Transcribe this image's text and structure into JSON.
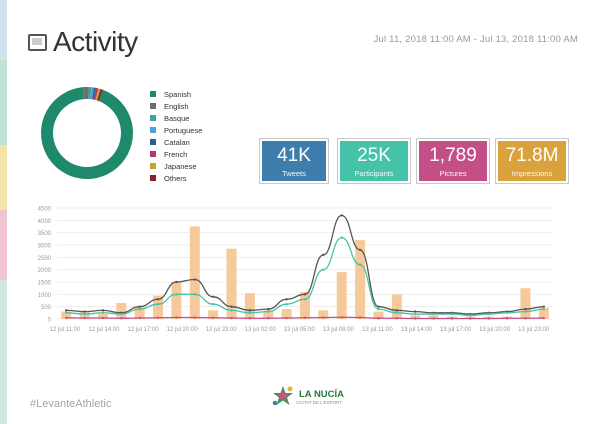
{
  "header": {
    "title": "Activity",
    "date_range": "Jul 11, 2018 11:00 AM - Jul 13, 2018 11:00 AM"
  },
  "languages": {
    "items": [
      {
        "label": "Spanish",
        "color": "#1f8a6b",
        "share": 0.93
      },
      {
        "label": "English",
        "color": "#6e6e6e",
        "share": 0.02
      },
      {
        "label": "Basque",
        "color": "#3aa1a8",
        "share": 0.01
      },
      {
        "label": "Portuguese",
        "color": "#4fa3d8",
        "share": 0.008
      },
      {
        "label": "Catalan",
        "color": "#2f5f8a",
        "share": 0.008
      },
      {
        "label": "French",
        "color": "#b5376d",
        "share": 0.008
      },
      {
        "label": "Japanese",
        "color": "#c9a227",
        "share": 0.008
      },
      {
        "label": "Others",
        "color": "#8b1e2e",
        "share": 0.008
      }
    ]
  },
  "stats": [
    {
      "value": "41K",
      "label": "Tweets",
      "color": "#3f7eac"
    },
    {
      "value": "25K",
      "label": "Participants",
      "color": "#45c3a8"
    },
    {
      "value": "1,789",
      "label": "Pictures",
      "color": "#c44f86"
    },
    {
      "value": "71.8M",
      "label": "Impressions",
      "color": "#d9a23a"
    }
  ],
  "chart_data": {
    "type": "bar",
    "x_ticks": [
      "12 jul 11:00",
      "12 jul 14:00",
      "12 jul 17:00",
      "12 jul 20:00",
      "12 jul 23:00",
      "13 jul 02:00",
      "13 jul 05:00",
      "13 jul 08:00",
      "13 jul 11:00",
      "13 jul 14:00",
      "13 jul 17:00",
      "13 jul 20:00",
      "13 jul 23:00"
    ],
    "y_ticks": [
      "0",
      "500",
      "1000",
      "1500",
      "2000",
      "2500",
      "3000",
      "3500",
      "4000",
      "4500"
    ],
    "ylim": [
      0,
      4500
    ],
    "bars": {
      "name": "Pictures",
      "color": "#f6c99a",
      "values": [
        300,
        300,
        200,
        650,
        500,
        950,
        1500,
        3750,
        350,
        2850,
        1050,
        350,
        400,
        1100,
        350,
        1900,
        3200,
        300,
        1000,
        150,
        150,
        100,
        100,
        100,
        100,
        1250,
        450
      ]
    },
    "series": [
      {
        "name": "Tweets",
        "color": "#555555",
        "values": [
          350,
          300,
          350,
          250,
          500,
          800,
          1500,
          1600,
          900,
          500,
          350,
          400,
          800,
          1000,
          2600,
          4200,
          2800,
          500,
          350,
          300,
          250,
          250,
          200,
          250,
          300,
          400,
          500
        ]
      },
      {
        "name": "Participants",
        "color": "#45c3a8",
        "values": [
          250,
          200,
          250,
          200,
          400,
          600,
          1000,
          1000,
          600,
          350,
          250,
          300,
          600,
          800,
          2000,
          3300,
          2200,
          400,
          250,
          200,
          200,
          200,
          150,
          200,
          250,
          300,
          400
        ]
      },
      {
        "name": "Pictures-line",
        "color": "#c44f86",
        "values": [
          50,
          40,
          40,
          30,
          40,
          50,
          60,
          60,
          50,
          40,
          30,
          30,
          40,
          50,
          60,
          70,
          60,
          30,
          30,
          20,
          20,
          20,
          20,
          20,
          30,
          30,
          40
        ]
      }
    ]
  },
  "footer": {
    "hashtag": "#LevanteAthletic",
    "logo_name": "LA NUCÍA",
    "logo_sub": "CIUTAT DE L'ESPORT"
  }
}
